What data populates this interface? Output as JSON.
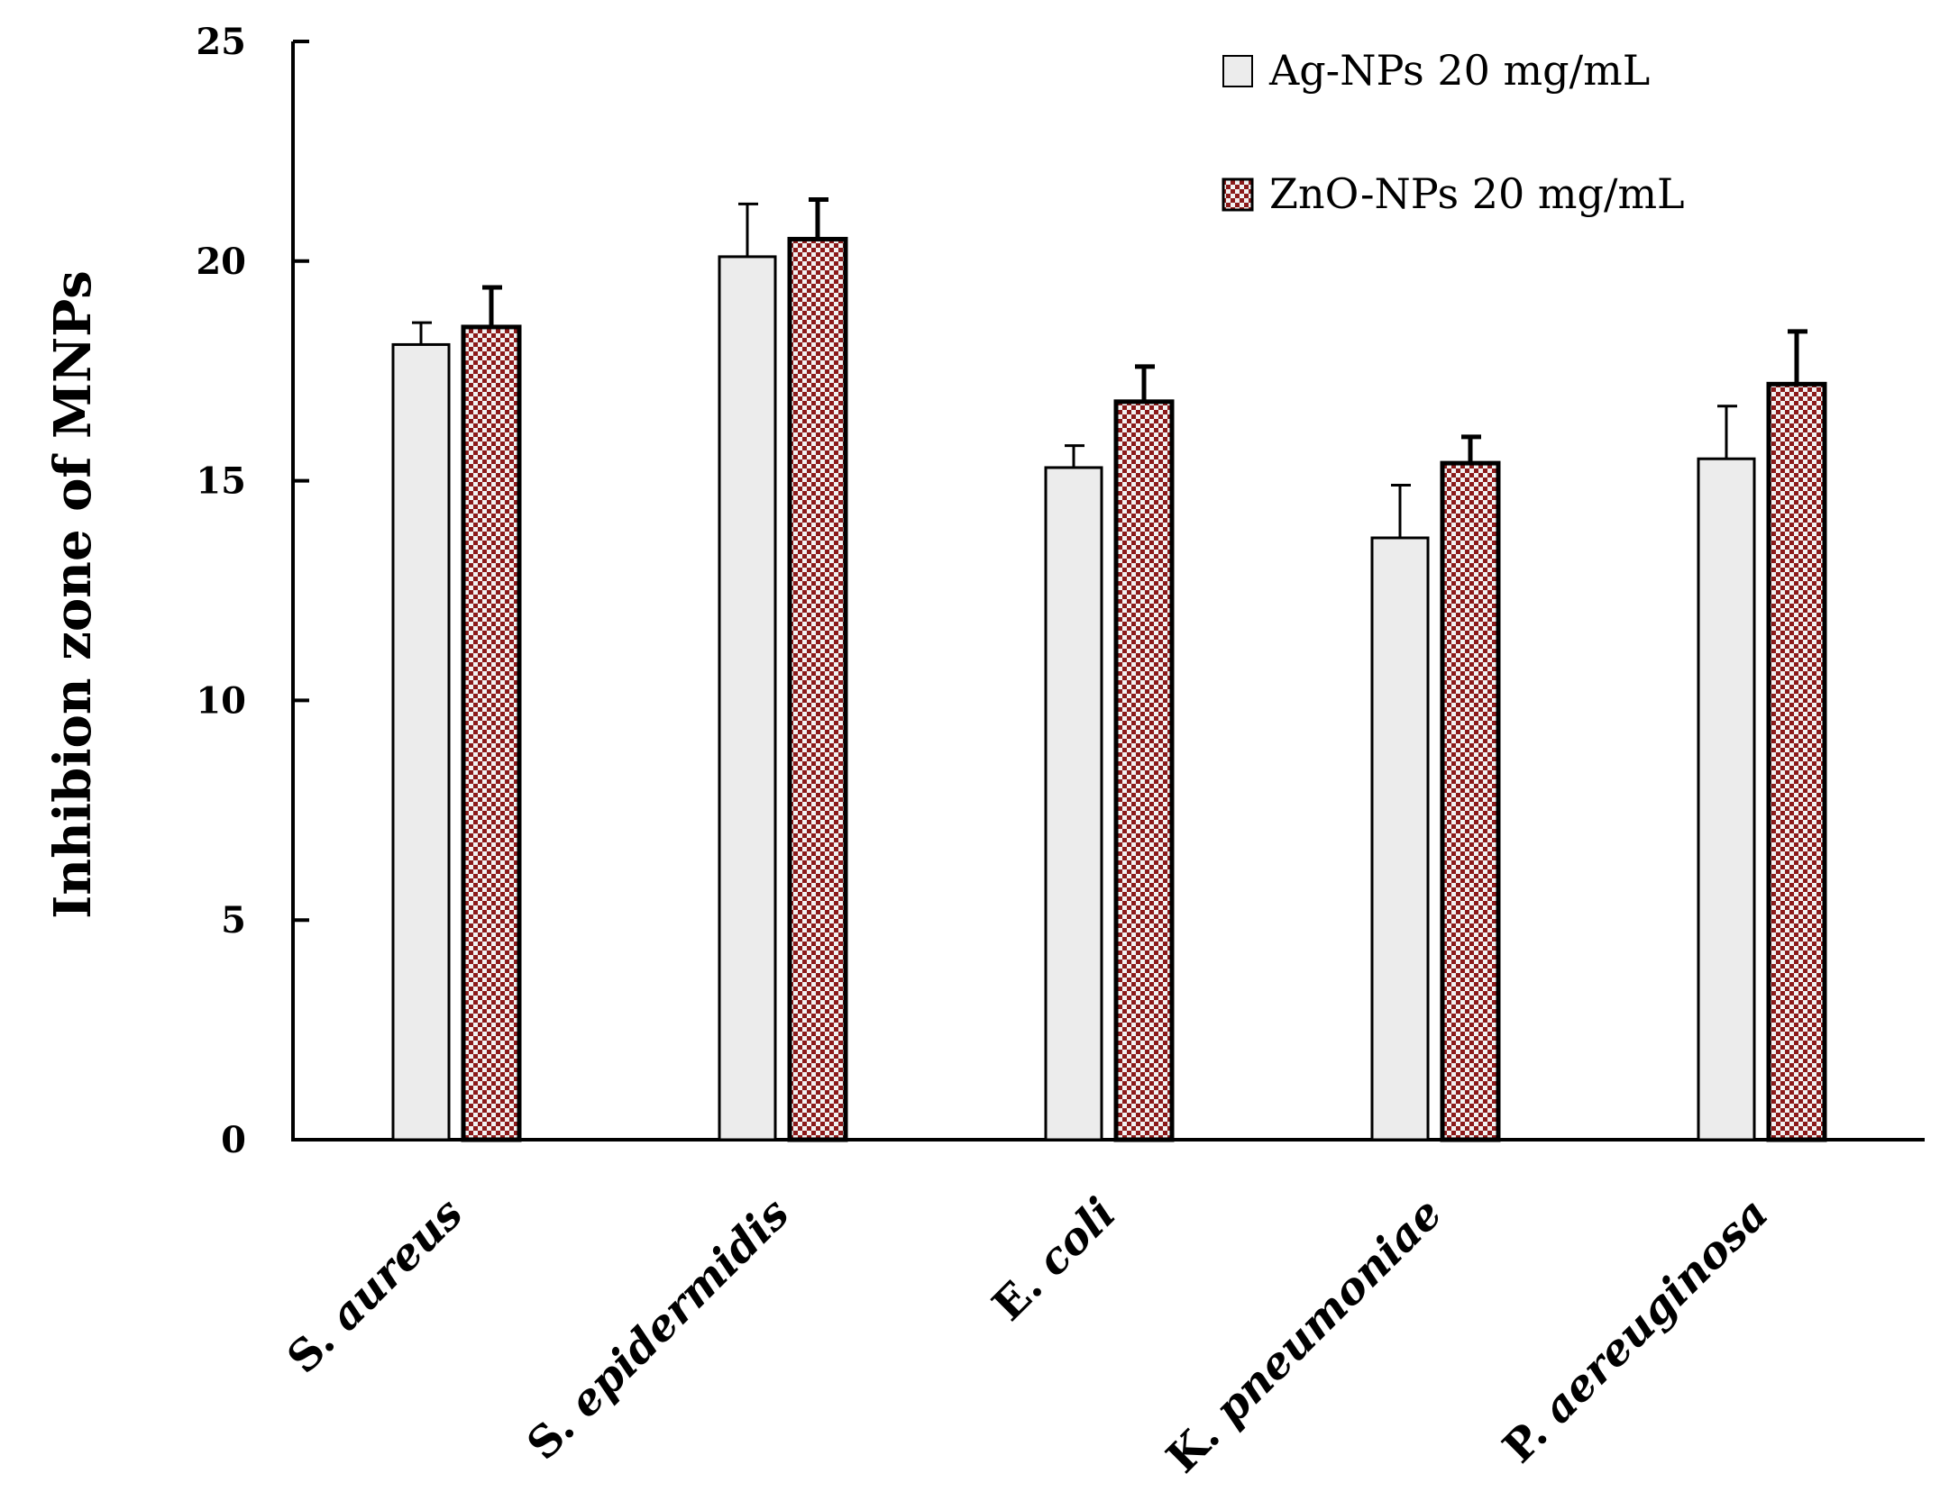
{
  "chart_data": {
    "type": "bar",
    "title": "",
    "xlabel": "",
    "ylabel": "Inhibion zone of MNPs",
    "ylim": [
      0,
      25
    ],
    "yticks": [
      "0",
      "5",
      "10",
      "15",
      "20",
      "25"
    ],
    "grid": false,
    "legend_position": "top-right",
    "categories": [
      {
        "label": "S. aureus",
        "prefix": "S. ",
        "italic": "aureus"
      },
      {
        "label": "S. epidermidis",
        "prefix": "S. ",
        "italic": "epidermidis"
      },
      {
        "label": "E. coli",
        "prefix": "E. ",
        "italic": "coli"
      },
      {
        "label": "K. pneumoniae",
        "prefix": "K. ",
        "italic": "pneumoniae"
      },
      {
        "label": "P. aereuginosa",
        "prefix": "P. ",
        "italic": "aereuginosa"
      }
    ],
    "series": [
      {
        "name": "Ag-NPs 20 mg/mL",
        "color": "#ececec",
        "pattern": "none",
        "values": [
          18.1,
          20.1,
          15.3,
          13.7,
          15.5
        ],
        "errors": [
          0.5,
          1.2,
          0.5,
          1.2,
          1.2
        ]
      },
      {
        "name": "ZnO-NPs 20 mg/mL",
        "color": "#8b1a1a",
        "pattern": "checker",
        "values": [
          18.5,
          20.5,
          16.8,
          15.4,
          17.2
        ],
        "errors": [
          0.9,
          0.9,
          0.8,
          0.6,
          1.2
        ]
      }
    ]
  }
}
